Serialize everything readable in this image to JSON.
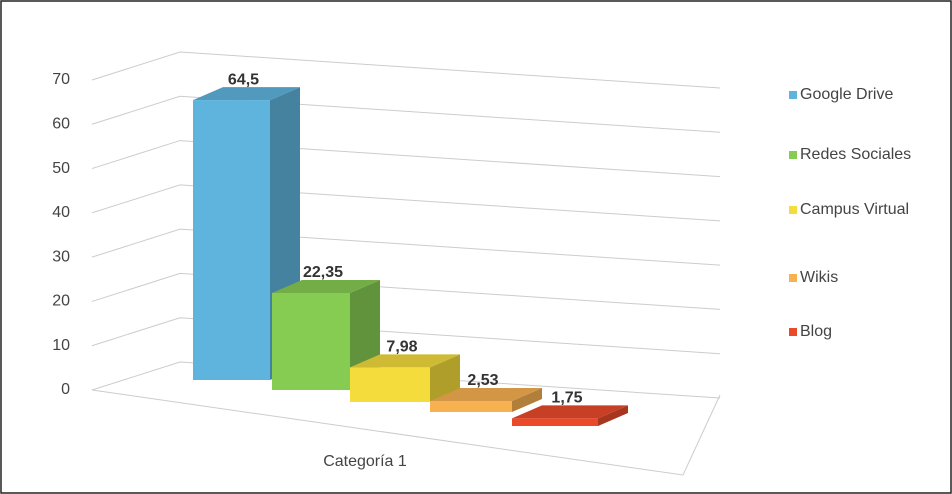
{
  "chart_data": {
    "type": "bar3d",
    "categories": [
      "Categoría 1"
    ],
    "series": [
      {
        "name": "Google Drive",
        "color": "#5fb4de",
        "values": [
          64.5
        ],
        "value_labels": [
          "64,5"
        ]
      },
      {
        "name": "Redes Sociales",
        "color": "#86cc52",
        "values": [
          22.35
        ],
        "value_labels": [
          "22,35"
        ]
      },
      {
        "name": "Campus Virtual",
        "color": "#f4dc3c",
        "values": [
          7.98
        ],
        "value_labels": [
          "7,98"
        ]
      },
      {
        "name": "Wikis",
        "color": "#f7b150",
        "values": [
          2.53
        ],
        "value_labels": [
          "2,53"
        ]
      },
      {
        "name": "Blog",
        "color": "#ea4a2a",
        "values": [
          1.75
        ],
        "value_labels": [
          "1,75"
        ]
      }
    ],
    "ylim": [
      0,
      70
    ],
    "yticks": [
      0,
      10,
      20,
      30,
      40,
      50,
      60,
      70
    ],
    "grid": true,
    "legend": "right"
  }
}
